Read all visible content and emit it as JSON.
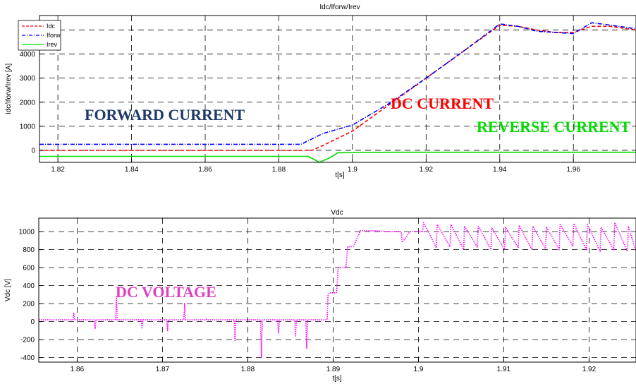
{
  "chart_data": [
    {
      "type": "line",
      "title": "Idc/Iforw/Irev",
      "xlabel": "t[s]",
      "ylabel": "Idc/Iforw/Irev [A]",
      "xlim": [
        1.815,
        1.977
      ],
      "ylim": [
        -500,
        5600
      ],
      "x_ticks": [
        "1.82",
        "1.84",
        "1.86",
        "1.88",
        "1.9",
        "1.92",
        "1.94",
        "1.96"
      ],
      "y_ticks": [
        "0",
        "1000",
        "2000",
        "3000",
        "4000",
        "5000"
      ],
      "grid": true,
      "legend_position": "top-left",
      "series": [
        {
          "name": "Idc",
          "color": "#ff0000",
          "style": "dashed",
          "x": [
            1.815,
            1.85,
            1.889,
            1.892,
            1.9,
            1.91,
            1.92,
            1.93,
            1.94,
            1.945,
            1.95,
            1.955,
            1.96,
            1.965,
            1.97,
            1.977
          ],
          "y": [
            0,
            0,
            0,
            200,
            800,
            1900,
            3000,
            4100,
            5200,
            5150,
            5000,
            4900,
            4900,
            5150,
            5150,
            5000
          ]
        },
        {
          "name": "Iforw",
          "color": "#0000ff",
          "style": "dashdot",
          "x": [
            1.815,
            1.85,
            1.886,
            1.89,
            1.892,
            1.9,
            1.91,
            1.92,
            1.93,
            1.94,
            1.945,
            1.95,
            1.955,
            1.96,
            1.965,
            1.97,
            1.977
          ],
          "y": [
            250,
            250,
            250,
            550,
            700,
            1050,
            1950,
            3000,
            4100,
            5250,
            5150,
            4950,
            4900,
            4850,
            5300,
            5200,
            5050
          ]
        },
        {
          "name": "Irev",
          "color": "#00dd00",
          "style": "solid",
          "x": [
            1.815,
            1.85,
            1.888,
            1.891,
            1.894,
            1.896,
            1.91,
            1.94,
            1.977
          ],
          "y": [
            -250,
            -250,
            -250,
            -500,
            -300,
            -100,
            -80,
            -80,
            -80
          ]
        }
      ],
      "annotations": [
        {
          "text": "FORWARD CURRENT",
          "color": "#1f3a68"
        },
        {
          "text": "DC CURRENT",
          "color": "#ff0000"
        },
        {
          "text": "REVERSE CURRENT",
          "color": "#00dd00"
        }
      ]
    },
    {
      "type": "line",
      "title": "Vdc",
      "xlabel": "t[s]",
      "ylabel": "Vdc [V]",
      "xlim": [
        1.8555,
        1.9255
      ],
      "ylim": [
        -450,
        1150
      ],
      "x_ticks": [
        "1.86",
        "1.87",
        "1.88",
        "1.89",
        "1.9",
        "1.91",
        "1.92"
      ],
      "y_ticks": [
        "-400",
        "-200",
        "0",
        "200",
        "400",
        "600",
        "800",
        "1000"
      ],
      "grid": true,
      "series": [
        {
          "name": "Vdc",
          "color": "#ff00ff",
          "style": "dotted",
          "x": [
            1.8555,
            1.8595,
            1.8596,
            1.8597,
            1.862,
            1.8621,
            1.8622,
            1.8645,
            1.8646,
            1.8647,
            1.8675,
            1.8676,
            1.8677,
            1.8705,
            1.8706,
            1.8707,
            1.8725,
            1.8726,
            1.8727,
            1.875,
            1.8751,
            1.8752,
            1.8784,
            1.8785,
            1.8786,
            1.8815,
            1.8816,
            1.8817,
            1.8835,
            1.8836,
            1.8837,
            1.8855,
            1.8856,
            1.8857,
            1.8868,
            1.8869,
            1.887,
            1.8893,
            1.8894,
            1.8896,
            1.8904,
            1.8906,
            1.8915,
            1.8917,
            1.8924,
            1.8932,
            1.8948,
            1.8965,
            1.898,
            1.8981,
            1.899,
            1.9005,
            1.9006,
            1.9021,
            1.9022,
            1.9037,
            1.9038,
            1.9053,
            1.9054,
            1.9069,
            1.907,
            1.9085,
            1.9086,
            1.9101,
            1.9102,
            1.9117,
            1.9118,
            1.9133,
            1.9134,
            1.9149,
            1.915,
            1.9165,
            1.9166,
            1.9181,
            1.9182,
            1.9197,
            1.9198,
            1.9213,
            1.9214,
            1.9229,
            1.923,
            1.9245,
            1.9246,
            1.9255
          ],
          "y": [
            20,
            20,
            100,
            20,
            20,
            -80,
            20,
            20,
            280,
            20,
            20,
            -80,
            20,
            20,
            -100,
            20,
            20,
            200,
            20,
            20,
            30,
            20,
            20,
            -220,
            20,
            20,
            -400,
            20,
            20,
            -130,
            20,
            20,
            -160,
            20,
            20,
            -300,
            20,
            20,
            300,
            320,
            320,
            600,
            600,
            830,
            840,
            1010,
            1010,
            1000,
            1000,
            880,
            1000,
            1000,
            1100,
            820,
            1080,
            830,
            1080,
            800,
            1060,
            830,
            1060,
            800,
            1040,
            800,
            1050,
            820,
            1070,
            800,
            1060,
            810,
            1050,
            800,
            1080,
            840,
            1090,
            800,
            1080,
            780,
            1050,
            800,
            1100,
            780,
            1060,
            780
          ]
        }
      ],
      "annotations": [
        {
          "text": "DC VOLTAGE",
          "color": "#e040c0"
        }
      ]
    }
  ]
}
